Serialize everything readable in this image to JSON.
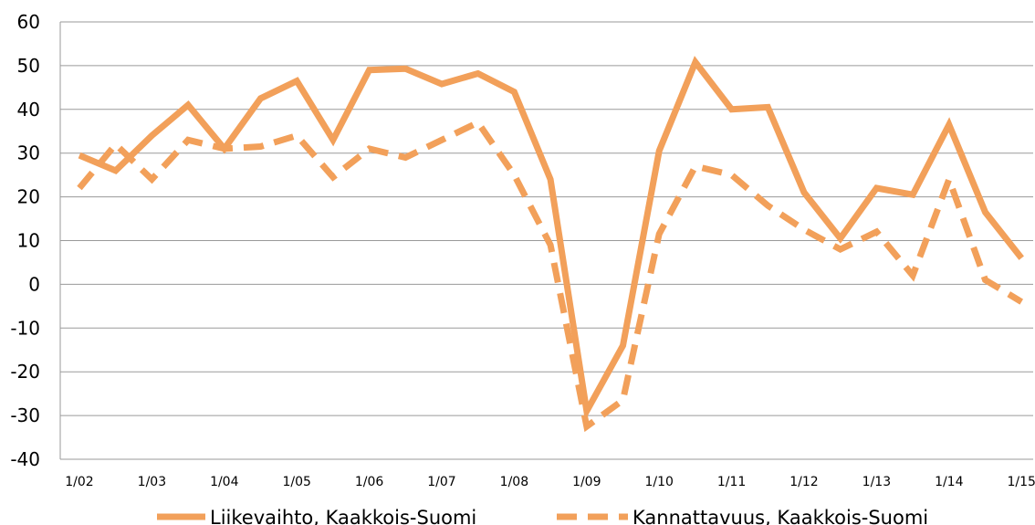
{
  "chart_data": {
    "type": "line",
    "title": "",
    "xlabel": "",
    "ylabel": "",
    "ylim": [
      -40,
      60
    ],
    "yticks": [
      60,
      50,
      40,
      30,
      20,
      10,
      0,
      -10,
      -20,
      -30,
      -40
    ],
    "xtick_labels": [
      "1/02",
      "1/03",
      "1/04",
      "1/05",
      "1/06",
      "1/07",
      "1/08",
      "1/09",
      "1/10",
      "1/11",
      "1/12",
      "1/13",
      "1/14",
      "1/15"
    ],
    "x": [
      "1/02",
      "7/02",
      "1/03",
      "7/03",
      "1/04",
      "7/04",
      "1/05",
      "7/05",
      "1/06",
      "7/06",
      "1/07",
      "7/07",
      "1/08",
      "7/08",
      "1/09",
      "7/09",
      "1/10",
      "7/10",
      "1/11",
      "7/11",
      "1/12",
      "7/12",
      "1/13",
      "7/13",
      "1/14",
      "7/14",
      "1/15"
    ],
    "grid": true,
    "legend_position": "bottom",
    "color": "#F2A05A",
    "series": [
      {
        "name": "Liikevaihto, Kaakkois-Suomi",
        "style": "solid",
        "values": [
          29.5,
          26,
          34,
          41,
          31,
          42.5,
          46.5,
          33,
          49,
          49.3,
          45.8,
          48.2,
          44,
          24,
          -29,
          -14,
          30.5,
          50.8,
          40,
          40.5,
          21,
          10.5,
          22,
          20.5,
          36.5,
          16.5,
          6
        ]
      },
      {
        "name": "Kannattavuus, Kaakkois-Suomi",
        "style": "dashed",
        "values": [
          22,
          32,
          24,
          33,
          31,
          31.5,
          34,
          24.5,
          31,
          29,
          33,
          37,
          25,
          9,
          -32.5,
          -26.5,
          11.5,
          27,
          25,
          18,
          12.5,
          8,
          12,
          2,
          24,
          1,
          -4
        ]
      }
    ]
  }
}
